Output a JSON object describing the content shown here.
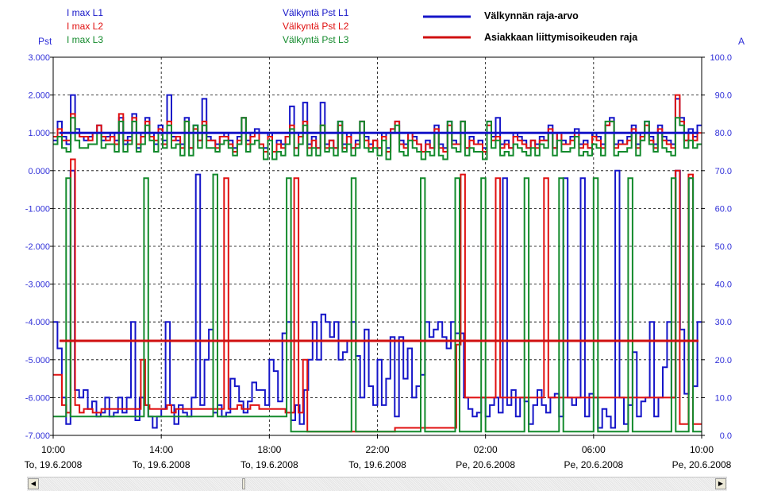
{
  "legend": {
    "i_max": [
      "I max L1",
      "I max L2",
      "I max L3"
    ],
    "pst": [
      "Välkyntä Pst L1",
      "Välkyntä Pst L2",
      "Välkyntä Pst L3"
    ],
    "limits": [
      "Välkynnän raja-arvo",
      "Asiakkaan liittymisoikeuden raja"
    ]
  },
  "axes": {
    "left_unit": "Pst",
    "right_unit": "A"
  },
  "colors": {
    "L1": "#1515c8",
    "L2": "#e01010",
    "L3": "#138a2c",
    "limit_flicker": "#1515c8",
    "limit_connection": "#d01010"
  },
  "scrollbar": {
    "left_arrow": "◀",
    "right_arrow": "▶",
    "position": 0.3
  },
  "chart_data": {
    "type": "line",
    "grid": true,
    "x_range": [
      "2008-06-19 10:00",
      "2008-06-20 10:00"
    ],
    "x_ticks": [
      {
        "time": "10:00",
        "date": "To, 19.6.2008"
      },
      {
        "time": "14:00",
        "date": "To, 19.6.2008"
      },
      {
        "time": "18:00",
        "date": "To, 19.6.2008"
      },
      {
        "time": "22:00",
        "date": "To, 19.6.2008"
      },
      {
        "time": "02:00",
        "date": "Pe, 20.6.2008"
      },
      {
        "time": "06:00",
        "date": "Pe, 20.6.2008"
      },
      {
        "time": "10:00",
        "date": "Pe, 20.6.2008"
      }
    ],
    "y_left": {
      "label": "Pst",
      "range": [
        -7,
        3
      ],
      "ticks": [
        "3.000",
        "2.000",
        "1.000",
        "0.000",
        "-1.000",
        "-2.000",
        "-3.000",
        "-4.000",
        "-5.000",
        "-6.000",
        "-7.000"
      ]
    },
    "y_right": {
      "label": "A",
      "range": [
        0,
        100
      ],
      "ticks": [
        "100.0",
        "90.0",
        "80.0",
        "70.0",
        "60.0",
        "50.0",
        "40.0",
        "30.0",
        "20.0",
        "10.0",
        "0.0"
      ]
    },
    "limits": [
      {
        "name": "Välkynnän raja-arvo",
        "axis": "left",
        "value": 1.0
      },
      {
        "name": "Asiakkaan liittymisoikeuden raja",
        "axis": "right",
        "value": 25
      }
    ],
    "series": [
      {
        "name": "Välkyntä Pst L1",
        "axis": "left",
        "values": [
          0.8,
          1.3,
          0.9,
          0.7,
          2.0,
          1.1,
          0.9,
          0.8,
          0.9,
          1.0,
          1.2,
          0.8,
          0.9,
          1.0,
          0.8,
          1.4,
          0.7,
          0.9,
          1.5,
          0.6,
          1.0,
          1.4,
          1.0,
          0.7,
          1.2,
          0.8,
          2.0,
          0.9,
          0.8,
          0.7,
          1.4,
          0.6,
          1.2,
          0.8,
          1.9,
          0.9,
          0.8,
          0.7,
          0.9,
          1.0,
          0.8,
          0.6,
          0.9,
          1.4,
          0.8,
          1.0,
          1.1,
          0.7,
          0.6,
          1.0,
          0.5,
          0.8,
          0.7,
          0.9,
          1.7,
          0.6,
          1.0,
          1.8,
          0.7,
          0.9,
          0.6,
          1.8,
          0.7,
          0.8,
          0.6,
          1.3,
          0.7,
          1.0,
          0.6,
          0.8,
          1.3,
          0.9,
          0.7,
          0.8,
          0.6,
          1.0,
          0.6,
          1.1,
          1.3,
          0.8,
          0.7,
          1.0,
          0.9,
          0.7,
          0.5,
          0.8,
          0.6,
          1.2,
          0.7,
          0.6,
          1.3,
          0.8,
          0.7,
          1.3,
          0.6,
          0.9,
          0.7,
          0.8,
          0.6,
          1.3,
          0.9,
          1.4,
          0.7,
          0.8,
          0.6,
          1.0,
          0.9,
          0.8,
          0.6,
          0.8,
          0.7,
          0.9,
          0.8,
          1.2,
          0.6,
          1.0,
          0.8,
          0.7,
          0.9,
          1.1,
          0.7,
          0.8,
          0.6,
          1.0,
          0.9,
          0.7,
          1.2,
          1.4,
          0.7,
          0.8,
          0.7,
          0.9,
          1.2,
          0.7,
          1.0,
          1.3,
          0.9,
          0.7,
          1.2,
          0.9,
          0.8,
          0.7,
          1.9,
          1.4,
          0.8,
          1.1,
          0.9,
          1.2
        ]
      },
      {
        "name": "Välkyntä Pst L2",
        "axis": "left",
        "values": [
          0.9,
          1.1,
          0.8,
          0.8,
          1.5,
          1.0,
          0.9,
          0.9,
          0.8,
          1.0,
          1.2,
          0.9,
          0.8,
          0.9,
          0.7,
          1.5,
          0.8,
          0.8,
          1.4,
          0.7,
          0.9,
          1.3,
          0.9,
          0.8,
          1.1,
          0.7,
          1.3,
          0.8,
          0.9,
          0.6,
          1.3,
          0.6,
          1.1,
          0.8,
          1.3,
          0.8,
          0.8,
          0.6,
          0.9,
          0.9,
          0.7,
          0.5,
          0.8,
          1.4,
          0.7,
          0.9,
          1.0,
          0.7,
          0.5,
          0.9,
          0.5,
          0.7,
          0.6,
          0.9,
          1.2,
          0.6,
          0.9,
          1.3,
          0.6,
          0.8,
          0.6,
          1.2,
          0.6,
          0.8,
          0.6,
          1.2,
          0.6,
          0.9,
          0.6,
          0.7,
          1.3,
          0.8,
          0.6,
          0.8,
          0.6,
          0.9,
          0.5,
          1.1,
          1.3,
          0.7,
          0.6,
          1.0,
          0.8,
          0.7,
          0.5,
          0.7,
          0.6,
          1.1,
          0.6,
          0.5,
          1.2,
          0.7,
          0.7,
          1.3,
          0.6,
          0.8,
          0.7,
          0.7,
          0.5,
          1.2,
          0.8,
          0.9,
          0.6,
          0.7,
          0.6,
          0.9,
          0.8,
          0.7,
          0.6,
          0.8,
          0.6,
          0.8,
          0.8,
          1.1,
          0.6,
          1.0,
          0.7,
          0.7,
          0.8,
          1.0,
          0.6,
          0.7,
          0.6,
          0.9,
          0.8,
          0.6,
          1.2,
          1.3,
          0.6,
          0.7,
          0.7,
          0.8,
          1.1,
          0.6,
          0.9,
          1.2,
          0.8,
          0.6,
          1.1,
          0.8,
          0.7,
          0.6,
          2.0,
          1.3,
          0.8,
          1.0,
          0.8,
          1.0
        ]
      },
      {
        "name": "Välkyntä Pst L3",
        "axis": "left",
        "values": [
          0.7,
          0.9,
          0.6,
          0.5,
          1.4,
          0.8,
          0.6,
          0.6,
          0.7,
          0.7,
          1.0,
          0.6,
          0.7,
          0.7,
          0.5,
          1.3,
          0.5,
          0.7,
          1.3,
          0.5,
          0.7,
          1.2,
          0.8,
          0.5,
          1.0,
          0.6,
          1.2,
          0.6,
          0.7,
          0.4,
          1.3,
          0.4,
          1.2,
          0.6,
          1.2,
          0.6,
          0.6,
          0.5,
          0.7,
          0.8,
          0.6,
          0.4,
          0.7,
          1.4,
          0.5,
          0.7,
          0.8,
          0.6,
          0.3,
          0.8,
          0.3,
          0.5,
          0.4,
          0.7,
          1.1,
          0.4,
          0.7,
          1.2,
          0.4,
          0.6,
          0.4,
          1.2,
          0.5,
          0.6,
          0.4,
          1.3,
          0.5,
          0.7,
          0.4,
          0.6,
          1.3,
          0.6,
          0.5,
          0.6,
          0.4,
          0.8,
          0.3,
          1.0,
          1.2,
          0.5,
          0.4,
          0.8,
          0.6,
          0.5,
          0.3,
          0.5,
          0.4,
          1.0,
          0.4,
          0.3,
          1.3,
          0.6,
          0.5,
          1.3,
          0.4,
          0.6,
          0.5,
          0.5,
          0.3,
          1.3,
          0.6,
          0.8,
          0.4,
          0.5,
          0.4,
          0.7,
          0.6,
          0.5,
          0.4,
          0.6,
          0.4,
          0.7,
          0.6,
          1.0,
          0.4,
          0.8,
          0.5,
          0.5,
          0.6,
          0.9,
          0.4,
          0.5,
          0.4,
          0.7,
          0.6,
          0.4,
          1.3,
          1.3,
          0.4,
          0.5,
          0.5,
          0.6,
          1.0,
          0.4,
          0.8,
          1.3,
          0.7,
          0.5,
          1.0,
          0.6,
          0.5,
          0.4,
          1.4,
          1.2,
          0.6,
          0.8,
          0.6,
          0.7
        ]
      },
      {
        "name": "I max L1",
        "axis": "right",
        "values": [
          30,
          23,
          10,
          3,
          70,
          12,
          10,
          12,
          7,
          9,
          5,
          6,
          10,
          5,
          6,
          10,
          6,
          10,
          30,
          4,
          10,
          8,
          5,
          2,
          5,
          7,
          30,
          8,
          3,
          8,
          6,
          5,
          10,
          69,
          8,
          20,
          28,
          6,
          8,
          5,
          6,
          15,
          13,
          9,
          6,
          9,
          14,
          12,
          12,
          8,
          20,
          17,
          9,
          27,
          30,
          4,
          8,
          3,
          12,
          20,
          30,
          20,
          32,
          30,
          26,
          30,
          20,
          22,
          25,
          30,
          21,
          10,
          28,
          13,
          8,
          20,
          8,
          15,
          26,
          5,
          26,
          15,
          23,
          10,
          13,
          16,
          30,
          26,
          28,
          30,
          26,
          23,
          30,
          27,
          27,
          10,
          7,
          5,
          6,
          10,
          5,
          8,
          10,
          6,
          68,
          8,
          12,
          5,
          10,
          9,
          3,
          8,
          12,
          8,
          6,
          10,
          11,
          5,
          68,
          10,
          8,
          10,
          68,
          5,
          11,
          10,
          2,
          7,
          5,
          2,
          70,
          10,
          3,
          8,
          22,
          5,
          9,
          10,
          30,
          5,
          10,
          18,
          30,
          10,
          70,
          28,
          11,
          68,
          13,
          30
        ]
      },
      {
        "name": "I max L2",
        "axis": "right",
        "values": [
          16,
          16,
          8,
          6,
          73,
          8,
          6,
          7,
          7,
          6,
          6,
          7,
          7,
          7,
          7,
          7,
          7,
          7,
          7,
          7,
          20,
          8,
          7,
          7,
          7,
          7,
          8,
          6,
          7,
          7,
          7,
          7,
          7,
          7,
          7,
          7,
          7,
          7,
          7,
          68,
          7,
          7,
          8,
          7,
          7,
          8,
          8,
          7,
          7,
          7,
          7,
          7,
          7,
          6,
          6,
          68,
          6,
          20,
          1,
          1,
          1,
          1,
          1,
          1,
          1,
          1,
          1,
          1,
          1,
          1,
          1,
          1,
          1,
          1,
          1,
          1,
          1,
          1,
          2,
          2,
          2,
          2,
          2,
          2,
          2,
          2,
          2,
          2,
          2,
          2,
          2,
          2,
          24,
          69,
          10,
          10,
          10,
          10,
          10,
          10,
          10,
          68,
          10,
          10,
          10,
          10,
          10,
          10,
          10,
          10,
          10,
          10,
          68,
          10,
          10,
          10,
          10,
          10,
          10,
          10,
          10,
          10,
          10,
          10,
          10,
          10,
          10,
          10,
          10,
          10,
          10,
          10,
          10,
          10,
          10,
          10,
          10,
          10,
          10,
          10,
          10,
          10,
          70,
          3,
          3,
          69,
          3,
          3
        ]
      },
      {
        "name": "I max L3",
        "axis": "right",
        "values": [
          5,
          5,
          5,
          68,
          5,
          5,
          5,
          5,
          5,
          5,
          5,
          5,
          5,
          5,
          5,
          5,
          5,
          5,
          5,
          5,
          5,
          68,
          5,
          5,
          5,
          5,
          5,
          5,
          5,
          5,
          5,
          5,
          5,
          5,
          5,
          5,
          5,
          69,
          5,
          5,
          5,
          5,
          5,
          5,
          5,
          5,
          5,
          5,
          5,
          5,
          5,
          5,
          5,
          5,
          68,
          1,
          1,
          1,
          1,
          1,
          1,
          1,
          1,
          1,
          1,
          1,
          1,
          1,
          1,
          68,
          1,
          1,
          1,
          1,
          1,
          1,
          1,
          1,
          1,
          1,
          1,
          1,
          1,
          1,
          1,
          68,
          1,
          1,
          1,
          1,
          1,
          1,
          1,
          68,
          1,
          1,
          1,
          1,
          1,
          68,
          1,
          1,
          1,
          1,
          1,
          1,
          1,
          1,
          1,
          68,
          1,
          1,
          1,
          1,
          1,
          1,
          1,
          68,
          1,
          1,
          1,
          1,
          1,
          1,
          1,
          68,
          1,
          1,
          1,
          1,
          1,
          1,
          1,
          68,
          1,
          1,
          1,
          1,
          1,
          1,
          1,
          1,
          1,
          68,
          1,
          1,
          1,
          68,
          1,
          1
        ]
      }
    ]
  }
}
